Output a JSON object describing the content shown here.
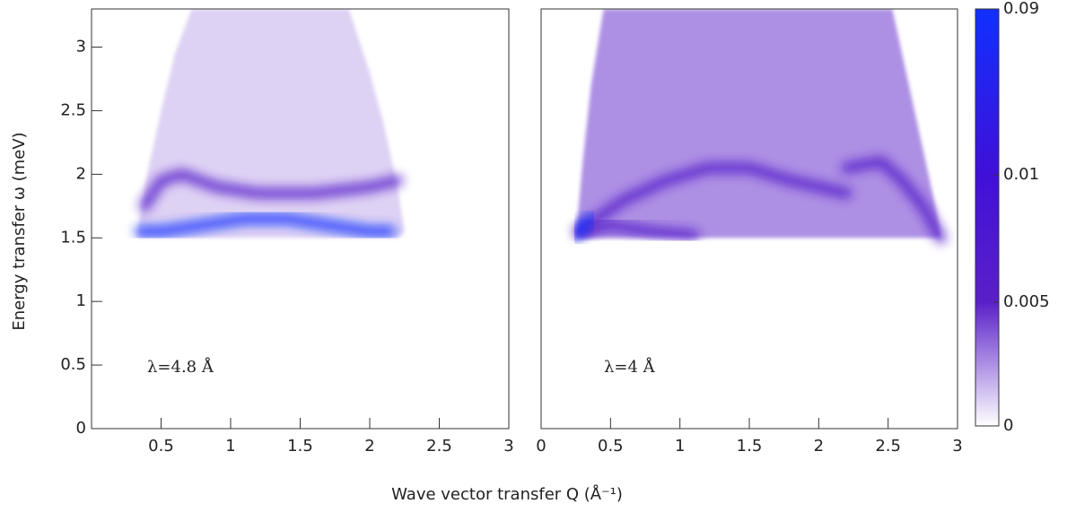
{
  "chart_data": [
    {
      "type": "heatmap",
      "annotation": "λ=4.8 Å",
      "ylabel": "Energy transfer ω (meV)",
      "xlabel": "Wave vector transfer Q (Å⁻¹)",
      "xlim": [
        0,
        3
      ],
      "ylim": [
        0,
        3.3
      ],
      "xticks": [
        0.5,
        1,
        1.5,
        2,
        2.5,
        3
      ],
      "yticks": [
        0,
        0.5,
        1,
        1.5,
        2,
        2.5,
        3
      ],
      "region": {
        "x": [
          0.33,
          0.4,
          0.5,
          0.6,
          0.72,
          1.85,
          2.0,
          2.1,
          2.2,
          2.25,
          2.2,
          0.33
        ],
        "y": [
          1.55,
          2.0,
          2.5,
          2.95,
          3.3,
          3.3,
          2.8,
          2.4,
          1.9,
          1.55,
          1.5,
          1.5
        ],
        "intensity": 0.001
      },
      "ridges": [
        {
          "x": [
            0.35,
            0.5,
            0.8,
            1.1,
            1.4,
            1.7,
            2.0,
            2.15
          ],
          "y": [
            1.55,
            1.55,
            1.6,
            1.65,
            1.65,
            1.6,
            1.55,
            1.55
          ],
          "intensity": 0.09
        },
        {
          "x": [
            0.38,
            0.5,
            0.65,
            0.9,
            1.2,
            1.6,
            2.0,
            2.2
          ],
          "y": [
            1.75,
            1.95,
            2.0,
            1.9,
            1.85,
            1.85,
            1.9,
            1.95
          ],
          "intensity": 0.006
        }
      ]
    },
    {
      "type": "heatmap",
      "annotation": "λ=4 Å",
      "xlim": [
        0,
        3
      ],
      "ylim": [
        0,
        3.3
      ],
      "xticks": [
        0,
        0.5,
        1,
        1.5,
        2,
        2.5,
        3
      ],
      "region": {
        "x": [
          0.25,
          0.3,
          0.36,
          0.45,
          2.53,
          2.65,
          2.75,
          2.85,
          2.88,
          0.25
        ],
        "y": [
          1.5,
          2.1,
          2.7,
          3.3,
          3.3,
          2.7,
          2.2,
          1.7,
          1.5,
          1.5
        ],
        "intensity": 0.0025
      },
      "ridges": [
        {
          "x": [
            0.27,
            0.4,
            0.6,
            0.9,
            1.2,
            1.5,
            1.8,
            2.2
          ],
          "y": [
            1.55,
            1.65,
            1.8,
            1.95,
            2.05,
            2.05,
            1.95,
            1.85
          ],
          "intensity": 0.006
        },
        {
          "x": [
            0.3,
            0.5,
            0.8,
            1.1
          ],
          "y": [
            1.55,
            1.6,
            1.55,
            1.52
          ],
          "intensity": 0.006
        },
        {
          "x": [
            2.2,
            2.45,
            2.6,
            2.75,
            2.88
          ],
          "y": [
            2.05,
            2.1,
            1.95,
            1.75,
            1.5
          ],
          "intensity": 0.006
        },
        {
          "x": [
            0.26,
            0.3,
            0.36
          ],
          "y": [
            1.52,
            1.6,
            1.65
          ],
          "intensity": 0.09
        }
      ]
    },
    {
      "type": "colorbar",
      "ticks": [
        {
          "value": 0,
          "label": "0"
        },
        {
          "value": 0.005,
          "label": "0.005"
        },
        {
          "value": 0.01,
          "label": "0.01"
        },
        {
          "value": 0.09,
          "label": "0.09"
        }
      ],
      "colors": [
        "#ffffff",
        "#5a20c8",
        "#4010d8",
        "#1030ff"
      ]
    }
  ]
}
